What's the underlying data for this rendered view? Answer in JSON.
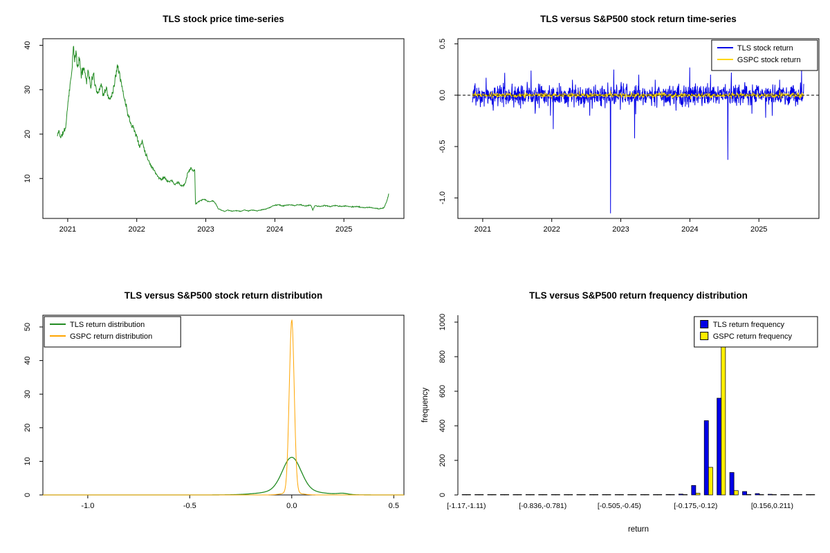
{
  "figure": {
    "background": "#ffffff"
  },
  "chart_data": [
    {
      "type": "line",
      "title": "TLS stock price time-series",
      "x_range": [
        2020.64,
        2025.87
      ],
      "y_range": [
        1,
        41.5
      ],
      "data_x_range": [
        2020.85,
        2025.65
      ],
      "x_ticks": [
        [
          2021,
          "2021"
        ],
        [
          2022,
          "2022"
        ],
        [
          2023,
          "2023"
        ],
        [
          2024,
          "2024"
        ],
        [
          2025,
          "2025"
        ]
      ],
      "y_ticks": [
        [
          10,
          "10"
        ],
        [
          20,
          "20"
        ],
        [
          30,
          "30"
        ],
        [
          40,
          "40"
        ]
      ],
      "box": true,
      "seed": 11,
      "samples": 1000,
      "series": [
        {
          "name": "TLS stock price",
          "color": "#228B22",
          "width": 1,
          "noise_frac": 0.035,
          "points": [
            [
              2020.85,
              19.5
            ],
            [
              2020.87,
              20.8
            ],
            [
              2020.9,
              19.2
            ],
            [
              2020.93,
              20.2
            ],
            [
              2020.97,
              21.5
            ],
            [
              2021.0,
              26.5
            ],
            [
              2021.02,
              29.5
            ],
            [
              2021.04,
              31.5
            ],
            [
              2021.06,
              34.5
            ],
            [
              2021.08,
              39.5
            ],
            [
              2021.1,
              36.5
            ],
            [
              2021.12,
              38.5
            ],
            [
              2021.14,
              35.0
            ],
            [
              2021.17,
              37.0
            ],
            [
              2021.2,
              33.0
            ],
            [
              2021.23,
              35.5
            ],
            [
              2021.27,
              32.0
            ],
            [
              2021.3,
              34.5
            ],
            [
              2021.33,
              30.5
            ],
            [
              2021.37,
              33.5
            ],
            [
              2021.4,
              31.0
            ],
            [
              2021.44,
              29.0
            ],
            [
              2021.48,
              31.5
            ],
            [
              2021.52,
              28.5
            ],
            [
              2021.56,
              30.5
            ],
            [
              2021.6,
              27.5
            ],
            [
              2021.64,
              29.0
            ],
            [
              2021.68,
              31.5
            ],
            [
              2021.72,
              36.0
            ],
            [
              2021.75,
              34.0
            ],
            [
              2021.78,
              31.0
            ],
            [
              2021.82,
              28.0
            ],
            [
              2021.86,
              25.5
            ],
            [
              2021.9,
              23.0
            ],
            [
              2021.95,
              21.5
            ],
            [
              2022.0,
              19.5
            ],
            [
              2022.04,
              17.0
            ],
            [
              2022.08,
              18.5
            ],
            [
              2022.12,
              16.0
            ],
            [
              2022.16,
              14.5
            ],
            [
              2022.2,
              13.0
            ],
            [
              2022.25,
              12.0
            ],
            [
              2022.3,
              10.5
            ],
            [
              2022.35,
              9.8
            ],
            [
              2022.4,
              10.3
            ],
            [
              2022.45,
              9.2
            ],
            [
              2022.5,
              9.6
            ],
            [
              2022.55,
              8.6
            ],
            [
              2022.6,
              9.2
            ],
            [
              2022.65,
              8.2
            ],
            [
              2022.7,
              8.8
            ],
            [
              2022.74,
              11.5
            ],
            [
              2022.78,
              12.2
            ],
            [
              2022.82,
              11.8
            ],
            [
              2022.84,
              12.0
            ],
            [
              2022.85,
              4.2
            ],
            [
              2022.88,
              4.6
            ],
            [
              2022.92,
              5.0
            ],
            [
              2022.96,
              5.3
            ],
            [
              2023.0,
              5.1
            ],
            [
              2023.05,
              4.7
            ],
            [
              2023.1,
              5.0
            ],
            [
              2023.14,
              4.4
            ],
            [
              2023.18,
              3.2
            ],
            [
              2023.22,
              2.9
            ],
            [
              2023.27,
              2.6
            ],
            [
              2023.32,
              2.9
            ],
            [
              2023.38,
              2.6
            ],
            [
              2023.44,
              2.8
            ],
            [
              2023.5,
              2.6
            ],
            [
              2023.56,
              2.9
            ],
            [
              2023.62,
              2.7
            ],
            [
              2023.68,
              2.9
            ],
            [
              2023.74,
              2.7
            ],
            [
              2023.8,
              2.9
            ],
            [
              2023.86,
              3.1
            ],
            [
              2023.92,
              3.4
            ],
            [
              2023.98,
              3.9
            ],
            [
              2024.05,
              4.1
            ],
            [
              2024.12,
              3.8
            ],
            [
              2024.2,
              4.1
            ],
            [
              2024.28,
              3.9
            ],
            [
              2024.36,
              4.1
            ],
            [
              2024.44,
              3.8
            ],
            [
              2024.52,
              4.0
            ],
            [
              2024.55,
              2.9
            ],
            [
              2024.58,
              3.9
            ],
            [
              2024.65,
              3.7
            ],
            [
              2024.72,
              3.9
            ],
            [
              2024.8,
              3.7
            ],
            [
              2024.88,
              3.9
            ],
            [
              2024.96,
              3.7
            ],
            [
              2025.04,
              3.8
            ],
            [
              2025.12,
              3.6
            ],
            [
              2025.2,
              3.7
            ],
            [
              2025.28,
              3.4
            ],
            [
              2025.36,
              3.5
            ],
            [
              2025.44,
              3.3
            ],
            [
              2025.52,
              3.2
            ],
            [
              2025.58,
              3.4
            ],
            [
              2025.62,
              4.8
            ],
            [
              2025.65,
              6.5
            ]
          ]
        }
      ]
    },
    {
      "type": "returns",
      "title": "TLS versus S&P500 stock return time-series",
      "x_range": [
        2020.64,
        2025.87
      ],
      "y_range": [
        -1.2,
        0.55
      ],
      "data_x_range": [
        2020.85,
        2025.65
      ],
      "x_ticks": [
        [
          2021,
          "2021"
        ],
        [
          2022,
          "2022"
        ],
        [
          2023,
          "2023"
        ],
        [
          2024,
          "2024"
        ],
        [
          2025,
          "2025"
        ]
      ],
      "y_ticks": [
        [
          0.5,
          "0.5"
        ],
        [
          0,
          "0.0"
        ],
        [
          -0.5,
          "-0.5"
        ],
        [
          -1,
          "-1.0"
        ]
      ],
      "box": true,
      "seed": 23,
      "samples": 1210,
      "zero_line_dashed": true,
      "series": [
        {
          "name": "TLS stock return",
          "color": "#0000E6",
          "width": 1,
          "amp": 0.05,
          "spikes": [
            [
              2020.9,
              -0.1
            ],
            [
              2021.05,
              0.17
            ],
            [
              2021.15,
              -0.15
            ],
            [
              2021.3,
              0.12
            ],
            [
              2021.45,
              -0.12
            ],
            [
              2021.55,
              -0.13
            ],
            [
              2021.7,
              0.24
            ],
            [
              2021.76,
              -0.18
            ],
            [
              2021.98,
              -0.2
            ],
            [
              2022.02,
              -0.33
            ],
            [
              2022.3,
              0.15
            ],
            [
              2022.55,
              -0.2
            ],
            [
              2022.85,
              -1.15
            ],
            [
              2022.9,
              0.25
            ],
            [
              2023.2,
              -0.42
            ],
            [
              2023.26,
              0.2
            ],
            [
              2023.5,
              0.15
            ],
            [
              2023.8,
              -0.15
            ],
            [
              2024.0,
              0.27
            ],
            [
              2024.3,
              0.2
            ],
            [
              2024.55,
              -0.63
            ],
            [
              2024.6,
              0.22
            ],
            [
              2024.9,
              -0.18
            ],
            [
              2025.1,
              -0.22
            ],
            [
              2025.3,
              0.15
            ],
            [
              2025.62,
              0.24
            ]
          ]
        },
        {
          "name": "GSPC stock return",
          "color": "#FFD700",
          "width": 0.9,
          "amp": 0.011,
          "spikes": [
            [
              2022.0,
              -0.04
            ],
            [
              2022.4,
              0.04
            ],
            [
              2022.85,
              0.045
            ],
            [
              2023.2,
              -0.035
            ],
            [
              2024.6,
              -0.035
            ],
            [
              2025.3,
              0.05
            ]
          ]
        }
      ],
      "legend": {
        "position": "top-right",
        "marker": "line",
        "items": [
          {
            "label": "TLS stock return",
            "color": "#0000E6"
          },
          {
            "label": "GSPC stock return",
            "color": "#FFD700"
          }
        ]
      }
    },
    {
      "type": "density",
      "title": "TLS versus S&P500 stock return distribution",
      "x_range": [
        -1.22,
        0.55
      ],
      "y_range": [
        0,
        53.5
      ],
      "x_ticks": [
        [
          -1,
          "-1.0"
        ],
        [
          -0.5,
          "-0.5"
        ],
        [
          0,
          "0.0"
        ],
        [
          0.5,
          "0.5"
        ]
      ],
      "y_ticks": [
        [
          0,
          "0"
        ],
        [
          10,
          "10"
        ],
        [
          20,
          "20"
        ],
        [
          30,
          "30"
        ],
        [
          40,
          "40"
        ],
        [
          50,
          "50"
        ]
      ],
      "box": true,
      "series": [
        {
          "name": "TLS return distribution",
          "color": "#228B22",
          "width": 1.3,
          "peak": 11.2,
          "components": [
            [
              9.8,
              0,
              0.045
            ],
            [
              1.4,
              0,
              0.12
            ],
            [
              0.35,
              0.25,
              0.025
            ]
          ]
        },
        {
          "name": "GSPC return distribution",
          "color": "#FFA500",
          "width": 1,
          "peak": 52,
          "components": [
            [
              51.5,
              0,
              0.012
            ],
            [
              0.8,
              0,
              0.04
            ]
          ]
        }
      ],
      "legend": {
        "position": "top-left",
        "marker": "line",
        "items": [
          {
            "label": "TLS return distribution",
            "color": "#228B22"
          },
          {
            "label": "GSPC return distribution",
            "color": "#FFA500"
          }
        ]
      }
    },
    {
      "type": "grouped-bar",
      "title": "TLS versus S&P500 return frequency distribution",
      "xlabel": "return",
      "ylabel": "frequency",
      "x_range": [
        0,
        1
      ],
      "y_range": [
        0,
        1040
      ],
      "y_ticks": [
        [
          0,
          "0"
        ],
        [
          200,
          "200"
        ],
        [
          400,
          "400"
        ],
        [
          600,
          "600"
        ],
        [
          800,
          "800"
        ],
        [
          1000,
          "1000"
        ]
      ],
      "box": false,
      "bins": 28,
      "bin_tick_labels": [
        {
          "index": 0,
          "label": "[-1.17,-1.11)"
        },
        {
          "index": 6,
          "label": "[-0.836,-0.781)"
        },
        {
          "index": 12,
          "label": "[-0.505,-0.45)"
        },
        {
          "index": 18,
          "label": "[-0.175,-0.12)"
        },
        {
          "index": 24,
          "label": "[0.156,0.211)"
        }
      ],
      "series": [
        {
          "name": "TLS return frequency",
          "color": "#0000E6",
          "values": [
            2,
            1,
            1,
            0,
            1,
            0,
            1,
            1,
            0,
            1,
            1,
            2,
            1,
            1,
            2,
            2,
            3,
            5,
            55,
            430,
            560,
            130,
            20,
            8,
            4,
            2,
            1,
            1
          ]
        },
        {
          "name": "GSPC return frequency",
          "color": "#FFEE00",
          "values": [
            0,
            0,
            0,
            0,
            0,
            0,
            0,
            0,
            0,
            0,
            0,
            0,
            0,
            0,
            0,
            0,
            0,
            2,
            10,
            160,
            860,
            25,
            3,
            1,
            0,
            0,
            0,
            0
          ]
        }
      ],
      "legend": {
        "position": "top-right",
        "marker": "square",
        "items": [
          {
            "label": "TLS return frequency",
            "color": "#0000E6"
          },
          {
            "label": "GSPC return frequency",
            "color": "#FFEE00"
          }
        ]
      }
    }
  ]
}
